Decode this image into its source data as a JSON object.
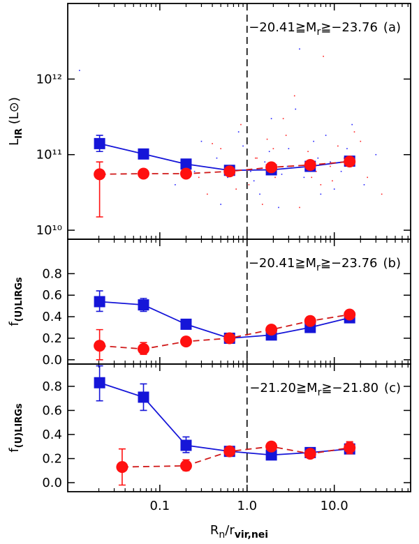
{
  "chart_data": [
    {
      "type": "line",
      "annotation": {
        "before": "−20.41≧M",
        "sub": "r",
        "after": "≧−23.76",
        "tag": "(a)"
      },
      "ylabel": {
        "main": "L",
        "sub": "IR",
        "after": " (L⊙)"
      },
      "xlog": true,
      "ylog": true,
      "xlim": [
        0.0088,
        75
      ],
      "ylim": [
        7600000000.0,
        10000000000000.0
      ],
      "xticks": [
        0.1,
        {
          "value": 1,
          "label": "1.0"
        },
        {
          "value": 10,
          "label": "10.0"
        }
      ],
      "xticks_minor": [
        0.02,
        0.03,
        0.04,
        0.05,
        0.06,
        0.07,
        0.08,
        0.09,
        0.2,
        0.3,
        0.4,
        0.5,
        0.6,
        0.7,
        0.8,
        0.9,
        2,
        3,
        4,
        5,
        6,
        7,
        8,
        9,
        20,
        30,
        40,
        50,
        60,
        70
      ],
      "show_xtick_labels": false,
      "yticks": [
        {
          "value": 10000000000.0,
          "label": "10¹⁰"
        },
        {
          "value": 100000000000.0,
          "label": "10¹¹"
        },
        {
          "value": 1000000000000.0,
          "label": "10¹²"
        }
      ],
      "reference_x": 1,
      "scatter": [
        {
          "color": "#2020ff",
          "x": [
            0.012,
            0.15,
            0.3,
            0.45,
            0.6,
            0.8,
            1.1,
            1.4,
            1.8,
            2.3,
            2.9,
            3.6,
            4.5,
            5.8,
            7,
            9,
            12,
            16,
            22,
            30,
            0.5,
            0.9,
            1.6,
            2.5,
            4,
            6.5,
            10,
            0.25,
            3,
            1.2,
            0.7,
            1.9,
            5,
            8,
            14
          ],
          "y": [
            1300000000000.0,
            40000000000.0,
            150000000000.0,
            90000000000.0,
            50000000000.0,
            200000000000.0,
            60000000000.0,
            30000000000.0,
            110000000000.0,
            20000000000.0,
            70000000000.0,
            400000000000.0,
            50000000000.0,
            150000000000.0,
            30000000000.0,
            80000000000.0,
            60000000000.0,
            250000000000.0,
            40000000000.0,
            100000000000.0,
            22000000000.0,
            130000000000.0,
            80000000000.0,
            55000000000.0,
            2500000000000.0,
            90000000000.0,
            35000000000.0,
            60000000000.0,
            120000000000.0,
            45000000000.0,
            70000000000.0,
            300000000000.0,
            65000000000.0,
            180000000000.0,
            120000000000.0
          ]
        },
        {
          "color": "#ff2020",
          "x": [
            0.2,
            0.35,
            0.5,
            0.65,
            0.85,
            1.05,
            1.3,
            1.7,
            2.1,
            2.6,
            3.2,
            4,
            5,
            6.2,
            7.5,
            9.5,
            13,
            17,
            24,
            35,
            0.4,
            1,
            1.5,
            2.8,
            4.8,
            7,
            11,
            0.28,
            3.5,
            1.25,
            0.75,
            2,
            5.5,
            9,
            20
          ],
          "y": [
            80000000000.0,
            30000000000.0,
            120000000000.0,
            60000000000.0,
            250000000000.0,
            40000000000.0,
            90000000000.0,
            160000000000.0,
            50000000000.0,
            300000000000.0,
            70000000000.0,
            20000000000.0,
            110000000000.0,
            60000000000.0,
            2000000000000.0,
            45000000000.0,
            90000000000.0,
            200000000000.0,
            50000000000.0,
            30000000000.0,
            140000000000.0,
            70000000000.0,
            22000000000.0,
            180000000000.0,
            80000000000.0,
            40000000000.0,
            130000000000.0,
            50000000000.0,
            600000000000.0,
            90000000000.0,
            35000000000.0,
            120000000000.0,
            50000000000.0,
            70000000000.0,
            150000000000.0
          ]
        }
      ],
      "series": [
        {
          "color": "#1515d8",
          "marker": "square",
          "dashed": false,
          "x": [
            0.0204,
            0.065,
            0.2,
            0.63,
            1.9,
            5.3,
            15
          ],
          "values": [
            140000000000.0,
            102000000000.0,
            75000000000.0,
            62000000000.0,
            63000000000.0,
            70000000000.0,
            82000000000.0
          ],
          "err_low": [
            110000000000.0,
            90000000000.0,
            null,
            null,
            null,
            null,
            null
          ],
          "err_high": [
            180000000000.0,
            115000000000.0,
            null,
            null,
            null,
            null,
            null
          ]
        },
        {
          "color": "#ff1010",
          "line_color": "#d01818",
          "marker": "circle",
          "dashed": true,
          "x": [
            0.0204,
            0.065,
            0.2,
            0.63,
            1.9,
            5.3,
            15
          ],
          "values": [
            55000000000.0,
            56000000000.0,
            56000000000.0,
            60000000000.0,
            68000000000.0,
            73000000000.0,
            81000000000.0
          ],
          "err_low": [
            15000000000.0,
            null,
            null,
            null,
            null,
            null,
            null
          ],
          "err_high": [
            80000000000.0,
            null,
            null,
            null,
            null,
            null,
            null
          ]
        }
      ]
    },
    {
      "type": "line",
      "annotation": {
        "before": "−20.41≧M",
        "sub": "r",
        "after": "≧−23.76",
        "tag": "(b)"
      },
      "ylabel": {
        "main": "f",
        "sub": "(U)LIRGs",
        "after": ""
      },
      "xlog": true,
      "ylog": false,
      "xlim": [
        0.0088,
        75
      ],
      "ylim": [
        -0.04,
        1.12
      ],
      "xticks": [
        0.1,
        {
          "value": 1,
          "label": "1.0"
        },
        {
          "value": 10,
          "label": "10.0"
        }
      ],
      "xticks_minor": [
        0.02,
        0.03,
        0.04,
        0.05,
        0.06,
        0.07,
        0.08,
        0.09,
        0.2,
        0.3,
        0.4,
        0.5,
        0.6,
        0.7,
        0.8,
        0.9,
        2,
        3,
        4,
        5,
        6,
        7,
        8,
        9,
        20,
        30,
        40,
        50,
        60,
        70
      ],
      "show_xtick_labels": false,
      "yticks": [
        {
          "value": 0,
          "label": "0.0"
        },
        0.2,
        0.4,
        0.6,
        0.8
      ],
      "reference_x": 1,
      "series": [
        {
          "color": "#1515d8",
          "marker": "square",
          "dashed": false,
          "x": [
            0.0204,
            0.065,
            0.2,
            0.63,
            1.9,
            5.3,
            15
          ],
          "values": [
            0.54,
            0.51,
            0.33,
            0.2,
            0.23,
            0.3,
            0.39
          ],
          "err_low": [
            0.45,
            0.45,
            null,
            null,
            null,
            null,
            null
          ],
          "err_high": [
            0.64,
            0.57,
            null,
            null,
            null,
            null,
            null
          ]
        },
        {
          "color": "#ff1010",
          "line_color": "#d01818",
          "marker": "circle",
          "dashed": true,
          "x": [
            0.0204,
            0.065,
            0.2,
            0.63,
            1.9,
            5.3,
            15
          ],
          "values": [
            0.13,
            0.1,
            0.17,
            0.2,
            0.28,
            0.36,
            0.42
          ],
          "err_low": [
            0,
            0.05,
            null,
            null,
            null,
            null,
            null
          ],
          "err_high": [
            0.28,
            0.16,
            null,
            null,
            null,
            null,
            null
          ]
        }
      ]
    },
    {
      "type": "line",
      "annotation": {
        "before": "−21.20≧M",
        "sub": "r",
        "after": "≧−21.80",
        "tag": "(c)"
      },
      "ylabel": {
        "main": "f",
        "sub": "(U)LIRGs",
        "after": ""
      },
      "xlabel": {
        "main": "R",
        "sub": "n",
        "mid": "/r",
        "sub2": "vir,nei"
      },
      "xlog": true,
      "ylog": false,
      "xlim": [
        0.0088,
        75
      ],
      "ylim": [
        -0.075,
        0.985
      ],
      "xticks": [
        0.1,
        {
          "value": 1,
          "label": "1.0"
        },
        {
          "value": 10,
          "label": "10.0"
        }
      ],
      "xticks_minor": [
        0.02,
        0.03,
        0.04,
        0.05,
        0.06,
        0.07,
        0.08,
        0.09,
        0.2,
        0.3,
        0.4,
        0.5,
        0.6,
        0.7,
        0.8,
        0.9,
        2,
        3,
        4,
        5,
        6,
        7,
        8,
        9,
        20,
        30,
        40,
        50,
        60,
        70
      ],
      "show_xtick_labels": true,
      "yticks": [
        {
          "value": 0,
          "label": "0.0"
        },
        0.2,
        0.4,
        0.6,
        0.8
      ],
      "reference_x": 1,
      "series": [
        {
          "color": "#1515d8",
          "marker": "square",
          "dashed": false,
          "x": [
            0.0204,
            0.065,
            0.2,
            0.63,
            1.9,
            5.3,
            15
          ],
          "values": [
            0.83,
            0.71,
            0.31,
            0.26,
            0.23,
            0.25,
            0.28
          ],
          "err_low": [
            0.68,
            0.6,
            0.25,
            null,
            null,
            null,
            0.24
          ],
          "err_high": [
            0.97,
            0.82,
            0.38,
            null,
            null,
            null,
            0.33
          ]
        },
        {
          "color": "#ff1010",
          "line_color": "#d01818",
          "marker": "circle",
          "dashed": true,
          "x": [
            0.037,
            0.2,
            0.63,
            1.9,
            5.3,
            15
          ],
          "values": [
            0.13,
            0.14,
            0.26,
            0.3,
            0.24,
            0.29
          ],
          "err_low": [
            -0.02,
            0.1,
            null,
            null,
            null,
            0.24
          ],
          "err_high": [
            0.28,
            0.19,
            null,
            null,
            null,
            0.34
          ]
        }
      ]
    }
  ]
}
